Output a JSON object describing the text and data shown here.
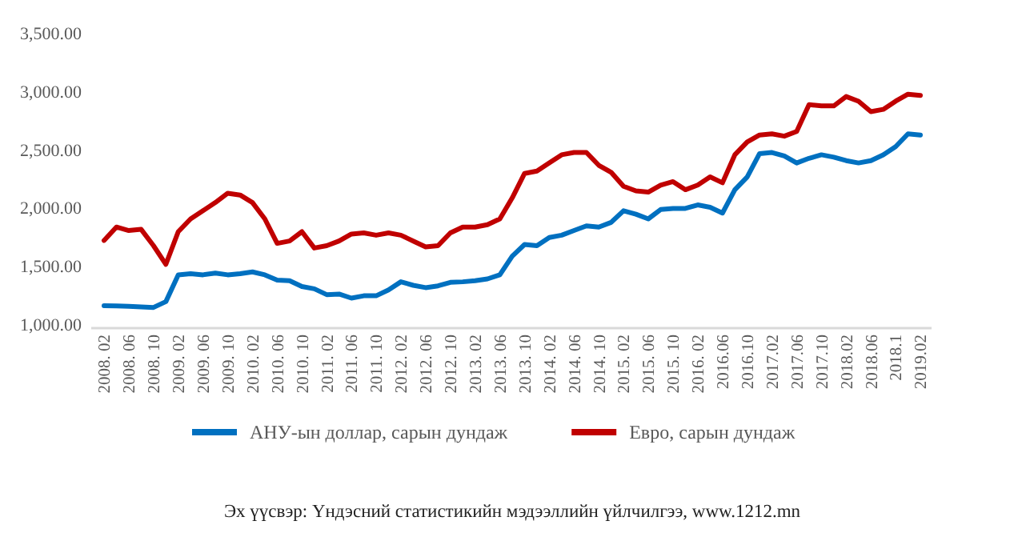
{
  "chart_data": {
    "type": "line",
    "categories": [
      "2008. 02",
      null,
      "2008. 06",
      null,
      "2008. 10",
      null,
      "2009. 02",
      null,
      "2009. 06",
      null,
      "2009. 10",
      null,
      "2010. 02",
      null,
      "2010. 06",
      null,
      "2010. 10",
      null,
      "2011. 02",
      null,
      "2011. 06",
      null,
      "2011. 10",
      null,
      "2012. 02",
      null,
      "2012. 06",
      null,
      "2012. 10",
      null,
      "2013. 02",
      null,
      "2013. 06",
      null,
      "2013. 10",
      null,
      "2014. 02",
      null,
      "2014. 06",
      null,
      "2014. 10",
      null,
      "2015. 02",
      null,
      "2015. 06",
      null,
      "2015. 10",
      null,
      "2016. 02",
      null,
      "2016.06",
      null,
      "2016.10",
      null,
      "2017.02",
      null,
      "2017.06",
      null,
      "2017.10",
      null,
      "2018.02",
      null,
      "2018.06",
      null,
      "2018.1",
      null,
      "2019.02"
    ],
    "series": [
      {
        "name": "АНУ-ын доллар, сарын дундаж",
        "color": "#0070c0",
        "values": [
          1165,
          1163,
          1160,
          1155,
          1150,
          1200,
          1430,
          1440,
          1430,
          1445,
          1430,
          1440,
          1455,
          1430,
          1385,
          1380,
          1330,
          1310,
          1260,
          1265,
          1230,
          1250,
          1250,
          1300,
          1370,
          1340,
          1320,
          1335,
          1365,
          1370,
          1380,
          1395,
          1430,
          1590,
          1690,
          1680,
          1750,
          1770,
          1810,
          1850,
          1840,
          1880,
          1980,
          1950,
          1910,
          1990,
          2000,
          2000,
          2030,
          2010,
          1960,
          2160,
          2270,
          2470,
          2480,
          2450,
          2390,
          2430,
          2460,
          2440,
          2410,
          2390,
          2410,
          2460,
          2530,
          2640,
          2630
        ]
      },
      {
        "name": "Евро, сарын дундаж",
        "color": "#c00000",
        "values": [
          1725,
          1840,
          1810,
          1820,
          1680,
          1520,
          1800,
          1910,
          1980,
          2050,
          2130,
          2115,
          2050,
          1910,
          1700,
          1720,
          1800,
          1660,
          1680,
          1720,
          1780,
          1790,
          1770,
          1790,
          1770,
          1720,
          1670,
          1680,
          1790,
          1840,
          1840,
          1860,
          1910,
          2090,
          2300,
          2320,
          2390,
          2460,
          2480,
          2480,
          2370,
          2310,
          2190,
          2150,
          2140,
          2200,
          2230,
          2160,
          2200,
          2270,
          2220,
          2460,
          2570,
          2630,
          2640,
          2620,
          2660,
          2890,
          2880,
          2880,
          2960,
          2920,
          2830,
          2850,
          2920,
          2980,
          2970
        ]
      }
    ],
    "ylim": [
      1000,
      3500
    ],
    "yticks": [
      {
        "value": 1000,
        "label": "1,000.00"
      },
      {
        "value": 1500,
        "label": "1,500.00"
      },
      {
        "value": 2000,
        "label": "2,000.00"
      },
      {
        "value": 2500,
        "label": "2,500.00"
      },
      {
        "value": 3000,
        "label": "3,000.00"
      },
      {
        "value": 3500,
        "label": "3,500.00"
      }
    ],
    "grid": false,
    "legend": "bottom",
    "marker": "none",
    "line_style": "solid",
    "annotations": [
      "Эх үүсвэр: Үндэсний статистикийн мэдээллийн үйлчилгээ, www.1212.mn"
    ]
  }
}
